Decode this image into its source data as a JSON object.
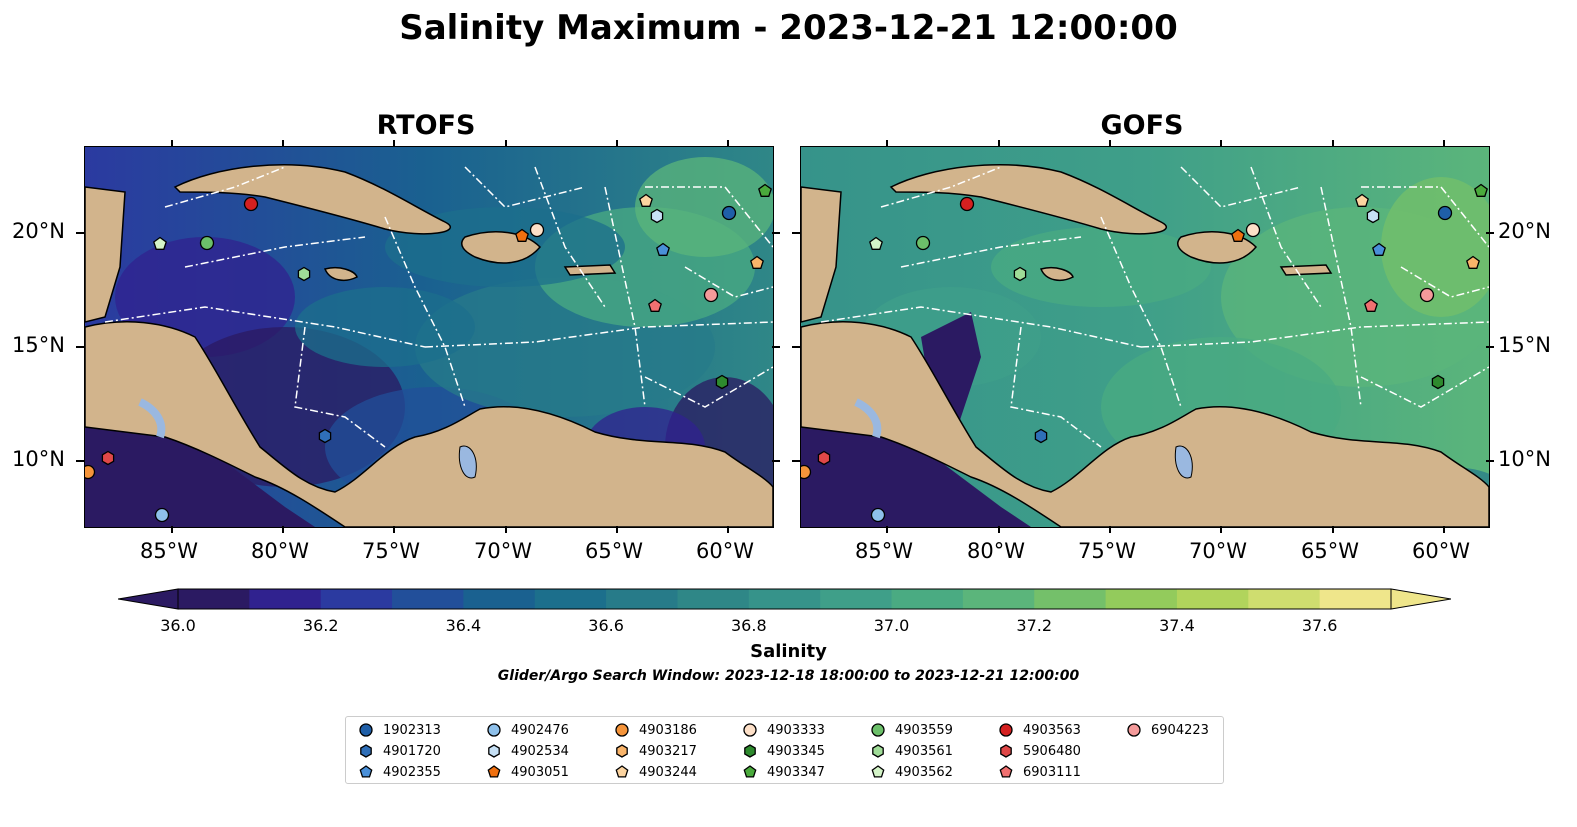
{
  "title": "Salinity Maximum - 2023-12-21 12:00:00",
  "panels": [
    {
      "title": "RTOFS"
    },
    {
      "title": "GOFS"
    }
  ],
  "axes": {
    "x_ticks": [
      "85°W",
      "80°W",
      "75°W",
      "70°W",
      "65°W",
      "60°W"
    ],
    "y_ticks": [
      "20°N",
      "15°N",
      "10°N"
    ]
  },
  "colorbar": {
    "label": "Salinity",
    "ticks": [
      "36.0",
      "36.2",
      "36.4",
      "36.6",
      "36.8",
      "37.0",
      "37.2",
      "37.4",
      "37.6"
    ],
    "colors": [
      "#2b1a62",
      "#30228f",
      "#2b3aa0",
      "#224f9a",
      "#1a6190",
      "#1c6f8c",
      "#277b89",
      "#2f8787",
      "#36938a",
      "#3f9f89",
      "#4aab82",
      "#5bb57b",
      "#74c06a",
      "#93cb5c",
      "#b1d45c",
      "#cfdd6f",
      "#efe68b"
    ]
  },
  "search_window": "Glider/Argo Search Window: 2023-12-18 18:00:00 to 2023-12-21 12:00:00",
  "legend": [
    {
      "label": "1902313",
      "color": "#1f5fa8",
      "marker": "circle"
    },
    {
      "label": "4901720",
      "color": "#2f6fb8",
      "marker": "hexagon"
    },
    {
      "label": "4902355",
      "color": "#4a90d9",
      "marker": "pentagon"
    },
    {
      "label": "4902476",
      "color": "#8ec0ea",
      "marker": "circle"
    },
    {
      "label": "4902534",
      "color": "#c6e0f5",
      "marker": "hexagon"
    },
    {
      "label": "4903051",
      "color": "#f07010",
      "marker": "pentagon"
    },
    {
      "label": "4903186",
      "color": "#f5943a",
      "marker": "circle"
    },
    {
      "label": "4903217",
      "color": "#f9b46a",
      "marker": "hexagon"
    },
    {
      "label": "4903244",
      "color": "#fcd4a0",
      "marker": "pentagon"
    },
    {
      "label": "4903333",
      "color": "#fde0c8",
      "marker": "circle"
    },
    {
      "label": "4903345",
      "color": "#2e8a2e",
      "marker": "hexagon"
    },
    {
      "label": "4903347",
      "color": "#4aaa3c",
      "marker": "pentagon"
    },
    {
      "label": "4903559",
      "color": "#6cc06a",
      "marker": "circle"
    },
    {
      "label": "4903561",
      "color": "#a0dc98",
      "marker": "hexagon"
    },
    {
      "label": "4903562",
      "color": "#d4f4c8",
      "marker": "pentagon"
    },
    {
      "label": "4903563",
      "color": "#d42020",
      "marker": "circle"
    },
    {
      "label": "5906480",
      "color": "#e04848",
      "marker": "hexagon"
    },
    {
      "label": "6903111",
      "color": "#f07070",
      "marker": "pentagon"
    },
    {
      "label": "6904223",
      "color": "#f49a9a",
      "marker": "circle"
    }
  ]
}
